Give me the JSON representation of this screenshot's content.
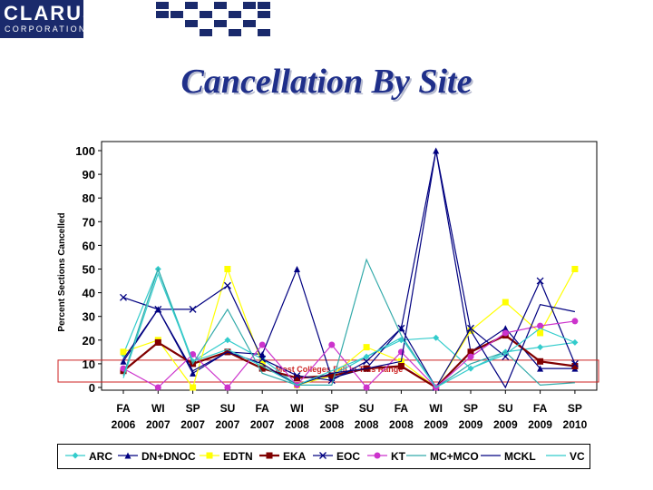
{
  "logo": {
    "main": "CLARUS",
    "sub": "CORPORATION"
  },
  "page_title": "Cancellation By Site",
  "colors": {
    "title": "#1f2f8a",
    "logo": "#1a2a6c",
    "annotation": "#cc2222",
    "checker": "#1a2a6c"
  },
  "chart_data": {
    "type": "line",
    "title": "Cancellation By Site",
    "ylabel": "Percent Sections Cancelled",
    "xlabel": "",
    "ylim": [
      0,
      100
    ],
    "yticks": [
      0,
      10,
      20,
      30,
      40,
      50,
      60,
      70,
      80,
      90,
      100
    ],
    "categories": [
      [
        "FA",
        "2006"
      ],
      [
        "WI",
        "2007"
      ],
      [
        "SP",
        "2007"
      ],
      [
        "SU",
        "2007"
      ],
      [
        "FA",
        "2007"
      ],
      [
        "WI",
        "2008"
      ],
      [
        "SP",
        "2008"
      ],
      [
        "SU",
        "2008"
      ],
      [
        "FA",
        "2008"
      ],
      [
        "WI",
        "2009"
      ],
      [
        "SP",
        "2009"
      ],
      [
        "SU",
        "2009"
      ],
      [
        "FA",
        "2009"
      ],
      [
        "SP",
        "2010"
      ]
    ],
    "annotation": {
      "text": "Most Colleges Fell In This Range",
      "y_range": [
        0,
        10
      ]
    },
    "legend_position": "bottom",
    "series": [
      {
        "name": "ARC",
        "color": "#33cccc",
        "marker": "diamond",
        "values": [
          14,
          50,
          11,
          20,
          12,
          1,
          5,
          13,
          20,
          21,
          8,
          15,
          17,
          19
        ]
      },
      {
        "name": "DN+DNOC",
        "color": "#000080",
        "marker": "triangle",
        "values": [
          11,
          33,
          6,
          15,
          14,
          50,
          4,
          8,
          25,
          100,
          15,
          25,
          8,
          8
        ]
      },
      {
        "name": "EDTN",
        "color": "#ffff00",
        "marker": "square",
        "values": [
          15,
          20,
          0,
          50,
          10,
          1,
          5,
          17,
          11,
          0,
          24,
          36,
          23,
          50
        ]
      },
      {
        "name": "EKA",
        "color": "#800000",
        "marker": "square",
        "values": [
          7,
          19,
          10,
          15,
          8,
          4,
          5,
          8,
          9,
          0,
          15,
          22,
          11,
          9
        ]
      },
      {
        "name": "EOC",
        "color": "#000080",
        "marker": "x",
        "values": [
          38,
          33,
          33,
          43,
          12,
          5,
          3,
          11,
          25,
          0,
          25,
          13,
          45,
          10
        ]
      },
      {
        "name": "KT",
        "color": "#cc33cc",
        "marker": "circle",
        "values": [
          8,
          0,
          14,
          0,
          18,
          1,
          18,
          0,
          15,
          0,
          13,
          23,
          26,
          28
        ]
      },
      {
        "name": "MC+MCO",
        "color": "#33aaaa",
        "marker": "none",
        "values": [
          5,
          50,
          10,
          33,
          6,
          1,
          1,
          54,
          22,
          0,
          10,
          15,
          1,
          2
        ]
      },
      {
        "name": "MCKL",
        "color": "#000080",
        "marker": "none",
        "values": [
          12,
          33,
          7,
          15,
          10,
          1,
          6,
          8,
          11,
          100,
          24,
          0,
          35,
          32
        ]
      },
      {
        "name": "VC",
        "color": "#33cccc",
        "marker": "none",
        "values": [
          4,
          48,
          11,
          16,
          9,
          1,
          7,
          13,
          21,
          0,
          8,
          14,
          25,
          19
        ]
      }
    ]
  }
}
